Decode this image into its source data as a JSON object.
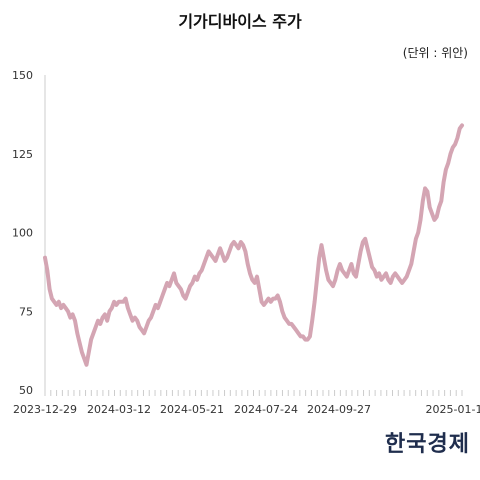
{
  "title": "기가디바이스 주가",
  "unit_label": "(단위 : 위안)",
  "logo": "한국경제",
  "colors": {
    "line": "#d4a5b3",
    "axis": "#cccccc",
    "text": "#333333",
    "logo": "#1f2d4d"
  },
  "chart_data": {
    "type": "line",
    "title": "기가디바이스 주가",
    "xlabel": "",
    "ylabel": "",
    "ylim": [
      50,
      150
    ],
    "yticks": [
      50,
      75,
      100,
      125,
      150
    ],
    "xtick_labels": [
      "2023-12-29",
      "2024-03-12",
      "2024-05-21",
      "2024-07-24",
      "2024-09-27",
      "2025-01-1"
    ],
    "grid": false,
    "series": [
      {
        "values": [
          92,
          88,
          82,
          79,
          78,
          77,
          78,
          76,
          77,
          76,
          75,
          73,
          74,
          72,
          68,
          65,
          62,
          60,
          58,
          62,
          66,
          68,
          70,
          72,
          71,
          73,
          74,
          72,
          75,
          76,
          78,
          77,
          78,
          78,
          78,
          79,
          76,
          74,
          72,
          73,
          72,
          70,
          69,
          68,
          70,
          72,
          73,
          75,
          77,
          76,
          78,
          80,
          82,
          84,
          83,
          85,
          87,
          84,
          83,
          82,
          80,
          79,
          81,
          83,
          84,
          86,
          85,
          87,
          88,
          90,
          92,
          94,
          93,
          92,
          91,
          93,
          95,
          93,
          91,
          92,
          94,
          96,
          97,
          96,
          95,
          97,
          96,
          94,
          90,
          87,
          85,
          84,
          86,
          82,
          78,
          77,
          78,
          79,
          78,
          79,
          79,
          80,
          78,
          75,
          73,
          72,
          71,
          71,
          70,
          69,
          68,
          67,
          67,
          66,
          66,
          67,
          72,
          78,
          85,
          92,
          96,
          92,
          88,
          85,
          84,
          83,
          85,
          88,
          90,
          88,
          87,
          86,
          88,
          90,
          87,
          86,
          90,
          94,
          97,
          98,
          95,
          92,
          89,
          88,
          86,
          87,
          85,
          86,
          87,
          85,
          84,
          86,
          87,
          86,
          85,
          84,
          85,
          86,
          88,
          90,
          94,
          98,
          100,
          104,
          110,
          114,
          113,
          108,
          106,
          104,
          105,
          108,
          110,
          116,
          120,
          122,
          125,
          127,
          128,
          130,
          133,
          134
        ]
      }
    ]
  }
}
